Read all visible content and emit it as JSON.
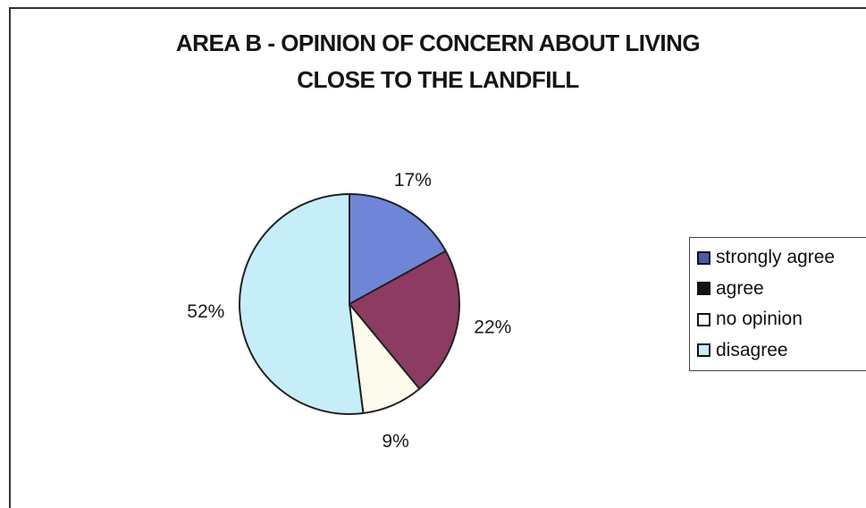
{
  "chart_data": {
    "type": "pie",
    "title": "AREA B - OPINION OF CONCERN ABOUT LIVING CLOSE TO THE LANDFILL",
    "title_lines": [
      "AREA B - OPINION OF CONCERN ABOUT LIVING",
      "CLOSE TO THE LANDFILL"
    ],
    "categories": [
      "strongly agree",
      "agree",
      "no opinion",
      "disagree"
    ],
    "values": [
      17,
      22,
      9,
      52
    ],
    "value_labels": [
      "17%",
      "22%",
      "9%",
      "52%"
    ],
    "colors": [
      "#6f86d8",
      "#8e3b64",
      "#fdfaee",
      "#c6eef9"
    ],
    "legend_position": "right",
    "legend": [
      {
        "label": "strongly agree",
        "color": "#4a5aa8"
      },
      {
        "label": "agree",
        "color": "#141414"
      },
      {
        "label": "no opinion",
        "color": "#ffffff"
      },
      {
        "label": "disagree",
        "color": "#c6eef9"
      }
    ]
  }
}
